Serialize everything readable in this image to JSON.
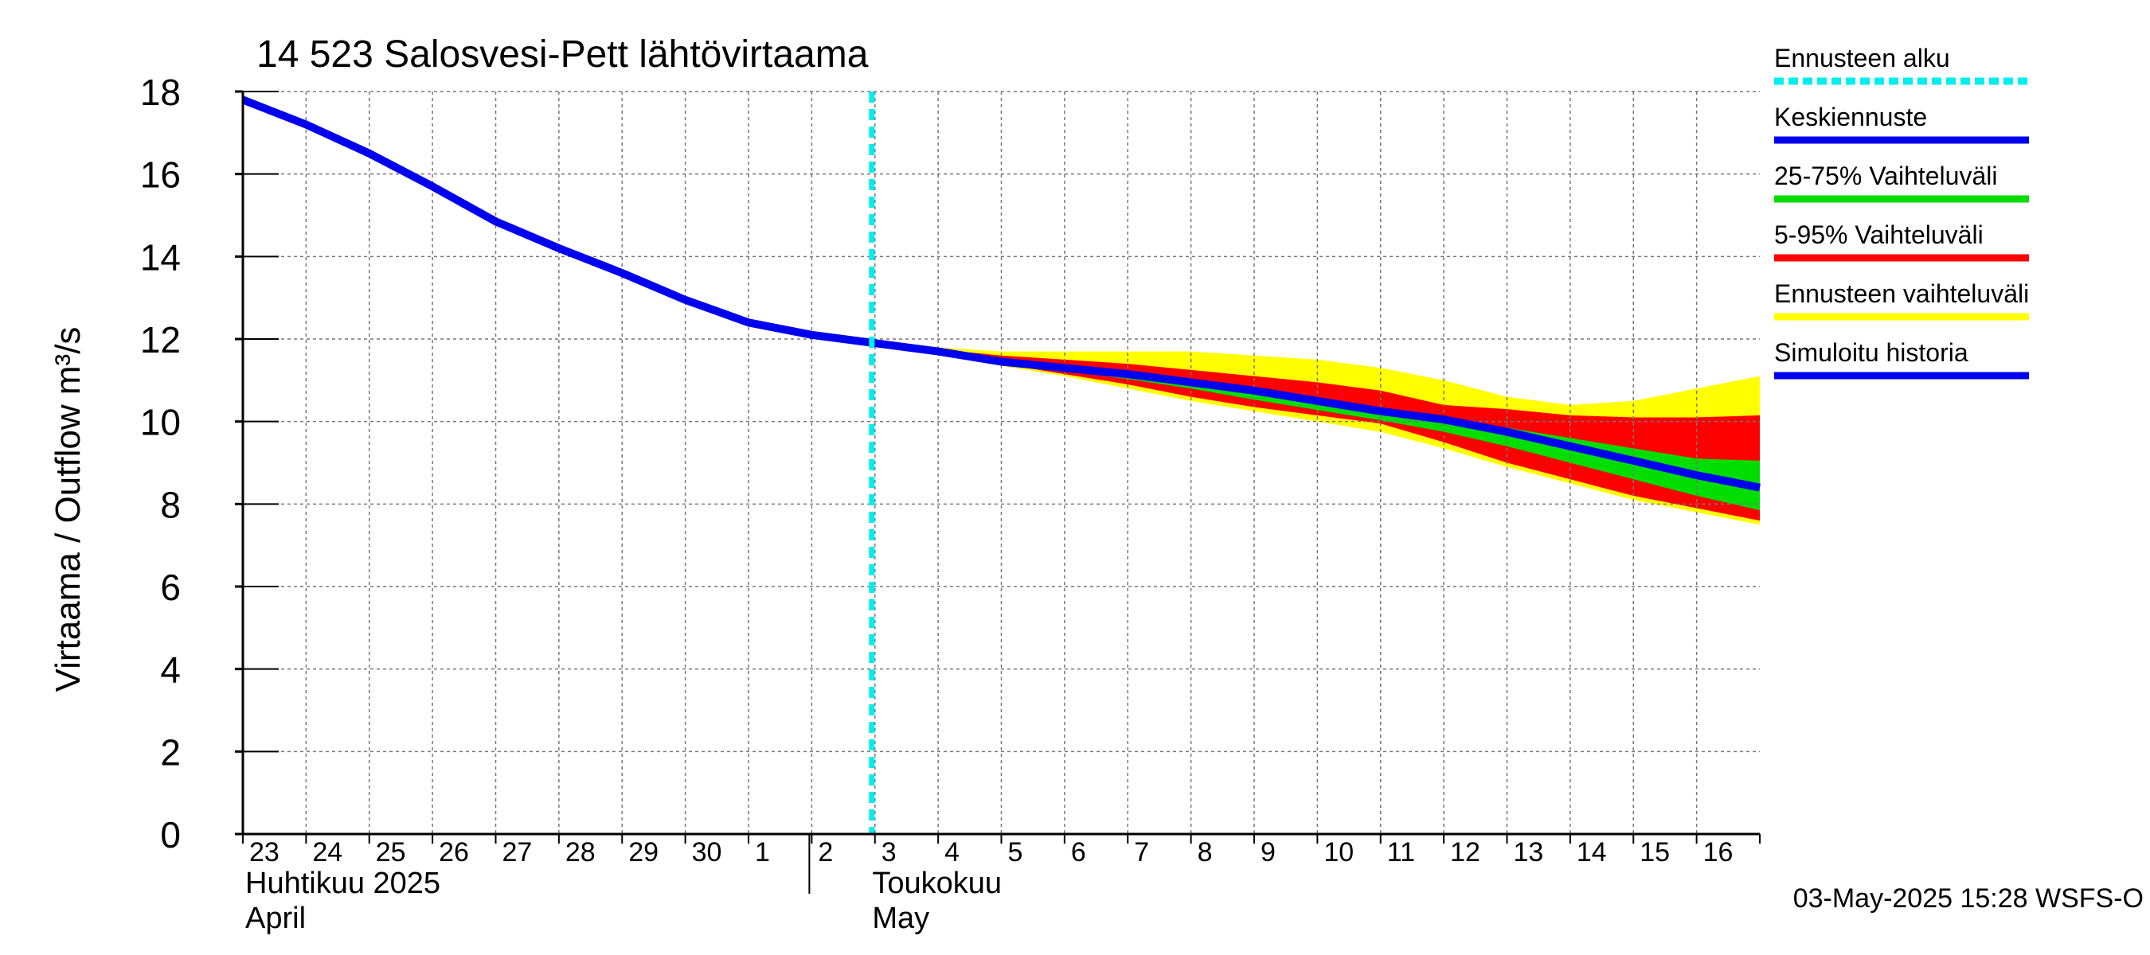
{
  "chart_data": {
    "type": "area",
    "title": "14 523 Salosvesi-Pett lähtövirtaama",
    "ylabel": "Virtaama / Outflow    m³/s",
    "ylim": [
      0,
      18
    ],
    "yticks": [
      0,
      2,
      4,
      6,
      8,
      10,
      12,
      14,
      16,
      18
    ],
    "xlim": [
      0,
      24
    ],
    "day_labels": [
      "23",
      "24",
      "25",
      "26",
      "27",
      "28",
      "29",
      "30",
      "1",
      "2",
      "3",
      "4",
      "5",
      "6",
      "7",
      "8",
      "9",
      "10",
      "11",
      "12",
      "13",
      "14",
      "15",
      "16"
    ],
    "month_labels": [
      {
        "line1": "Huhtikuu  2025",
        "line2": "April",
        "day_index": 0
      },
      {
        "line1": "Toukokuu",
        "line2": "May",
        "day_index": 9
      }
    ],
    "forecast_start": 9.95,
    "x": [
      0,
      1,
      2,
      3,
      4,
      5,
      6,
      7,
      8,
      9,
      10,
      11,
      12,
      13,
      14,
      15,
      16,
      17,
      18,
      19,
      20,
      21,
      22,
      23,
      24
    ],
    "series": [
      {
        "name": "Ennusteen vaihteluväli",
        "color": "#ffff00",
        "kind": "band",
        "x": [
          10,
          11,
          12,
          13,
          14,
          15,
          16,
          17,
          18,
          19,
          20,
          21,
          22,
          23,
          24
        ],
        "upper": [
          11.9,
          11.8,
          11.7,
          11.7,
          11.7,
          11.7,
          11.6,
          11.5,
          11.3,
          11.0,
          10.6,
          10.4,
          10.5,
          10.8,
          11.1
        ],
        "lower": [
          11.9,
          11.7,
          11.35,
          11.1,
          10.8,
          10.5,
          10.25,
          10.0,
          9.75,
          9.35,
          8.9,
          8.5,
          8.1,
          7.8,
          7.5
        ]
      },
      {
        "name": "5-95% Vaihteluväli",
        "color": "#ff0000",
        "kind": "band",
        "x": [
          10,
          11,
          12,
          13,
          14,
          15,
          16,
          17,
          18,
          19,
          20,
          21,
          22,
          23,
          24
        ],
        "upper": [
          11.9,
          11.75,
          11.6,
          11.5,
          11.4,
          11.25,
          11.1,
          10.95,
          10.75,
          10.4,
          10.3,
          10.15,
          10.1,
          10.1,
          10.15
        ],
        "lower": [
          11.9,
          11.7,
          11.4,
          11.15,
          10.9,
          10.6,
          10.35,
          10.15,
          9.95,
          9.5,
          9.0,
          8.6,
          8.2,
          7.9,
          7.6
        ]
      },
      {
        "name": "25-75% Vaihteluväli",
        "color": "#00dd00",
        "kind": "band",
        "x": [
          10,
          11,
          12,
          13,
          14,
          15,
          16,
          17,
          18,
          19,
          20,
          21,
          22,
          23,
          24
        ],
        "upper": [
          11.9,
          11.72,
          11.48,
          11.33,
          11.18,
          10.98,
          10.78,
          10.53,
          10.28,
          10.1,
          9.85,
          9.6,
          9.35,
          9.1,
          9.05
        ],
        "lower": [
          11.9,
          11.7,
          11.43,
          11.23,
          11.03,
          10.8,
          10.53,
          10.28,
          10.03,
          9.75,
          9.4,
          9.0,
          8.6,
          8.2,
          7.85
        ]
      },
      {
        "name": "Simuloitu historia",
        "color": "#0000ee",
        "kind": "line",
        "x": [
          0,
          1,
          2,
          3,
          4,
          5,
          6,
          7,
          8,
          9,
          10
        ],
        "values": [
          17.8,
          17.2,
          16.5,
          15.7,
          14.85,
          14.2,
          13.6,
          12.95,
          12.4,
          12.1,
          11.9
        ]
      },
      {
        "name": "Keskiennuste",
        "color": "#0000ee",
        "kind": "line",
        "x": [
          10,
          11,
          12,
          13,
          14,
          15,
          16,
          17,
          18,
          19,
          20,
          21,
          22,
          23,
          24
        ],
        "values": [
          11.9,
          11.7,
          11.45,
          11.3,
          11.15,
          10.95,
          10.75,
          10.5,
          10.25,
          10.05,
          9.75,
          9.4,
          9.05,
          8.7,
          8.4
        ]
      }
    ],
    "legend": {
      "position": "right",
      "items": [
        {
          "label": "Ennusteen alku",
          "color": "#00eeee",
          "style": "dashed"
        },
        {
          "label": "Keskiennuste",
          "color": "#0000ee",
          "style": "solid"
        },
        {
          "label": "25-75% Vaihteluväli",
          "color": "#00dd00",
          "style": "solid"
        },
        {
          "label": "5-95% Vaihteluväli",
          "color": "#ff0000",
          "style": "solid"
        },
        {
          "label": "Ennusteen vaihteluväli",
          "color": "#ffff00",
          "style": "solid"
        },
        {
          "label": "Simuloitu historia",
          "color": "#0000ee",
          "style": "solid"
        }
      ]
    },
    "footer": "03-May-2025 15:28 WSFS-O",
    "grid": true,
    "forecast_line_color": "#00eeee"
  }
}
